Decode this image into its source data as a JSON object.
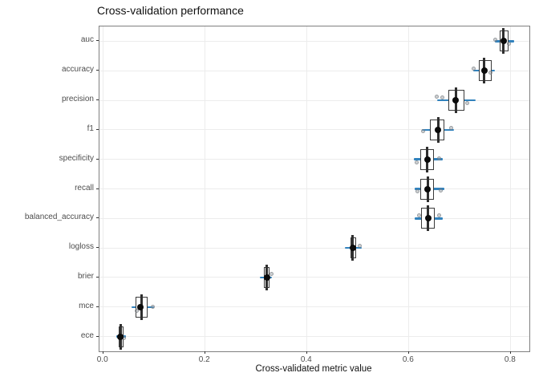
{
  "chart_data": {
    "type": "boxplot",
    "orientation": "horizontal",
    "title": "Cross-validation performance",
    "xlabel": "Cross-validated metric value",
    "ylabel": "",
    "xlim": [
      -0.0074,
      0.8364
    ],
    "x_ticks": [
      0.0,
      0.2,
      0.4,
      0.6,
      0.8
    ],
    "x_tick_labels": [
      "0.0",
      "0.2",
      "0.4",
      "0.6",
      "0.8"
    ],
    "grid": true,
    "legend": "none",
    "colors": {
      "box_border": "#3a3a3a",
      "median": "#2f2f2f",
      "crossbar_blue": "#3182bd",
      "mean_dot": "#0b0b0b",
      "jitter_point": "#94989e",
      "grid": "#ececec",
      "panel_border": "#7f7f7f",
      "axis_text": "#4d4d4d",
      "title_text": "#111111"
    },
    "metrics": [
      {
        "name": "auc",
        "lo": 0.768,
        "q1": 0.778,
        "median": 0.786,
        "q3": 0.795,
        "hi": 0.806,
        "mean": 0.786,
        "points": [
          {
            "v": 0.77,
            "dy": -2
          },
          {
            "v": 0.796,
            "dy": 3
          }
        ]
      },
      {
        "name": "accuracy",
        "lo": 0.726,
        "q1": 0.738,
        "median": 0.748,
        "q3": 0.762,
        "hi": 0.768,
        "mean": 0.748,
        "points": [
          {
            "v": 0.727,
            "dy": -3
          },
          {
            "v": 0.76,
            "dy": 2
          }
        ]
      },
      {
        "name": "precision",
        "lo": 0.655,
        "q1": 0.678,
        "median": 0.693,
        "q3": 0.709,
        "hi": 0.731,
        "mean": 0.692,
        "points": [
          {
            "v": 0.655,
            "dy": -5
          },
          {
            "v": 0.665,
            "dy": -4
          },
          {
            "v": 0.715,
            "dy": 3
          }
        ]
      },
      {
        "name": "f1",
        "lo": 0.625,
        "q1": 0.641,
        "median": 0.657,
        "q3": 0.67,
        "hi": 0.688,
        "mean": 0.657,
        "points": [
          {
            "v": 0.628,
            "dy": 2
          },
          {
            "v": 0.683,
            "dy": -2
          }
        ]
      },
      {
        "name": "specificity",
        "lo": 0.609,
        "q1": 0.623,
        "median": 0.636,
        "q3": 0.649,
        "hi": 0.667,
        "mean": 0.636,
        "points": [
          {
            "v": 0.615,
            "dy": 4
          },
          {
            "v": 0.659,
            "dy": -1
          }
        ]
      },
      {
        "name": "recall",
        "lo": 0.612,
        "q1": 0.623,
        "median": 0.637,
        "q3": 0.649,
        "hi": 0.67,
        "mean": 0.637,
        "points": [
          {
            "v": 0.617,
            "dy": 3
          },
          {
            "v": 0.662,
            "dy": 2
          }
        ]
      },
      {
        "name": "balanced_accuracy",
        "lo": 0.612,
        "q1": 0.624,
        "median": 0.638,
        "q3": 0.65,
        "hi": 0.667,
        "mean": 0.638,
        "points": [
          {
            "v": 0.62,
            "dy": -4
          },
          {
            "v": 0.659,
            "dy": -4
          }
        ]
      },
      {
        "name": "logloss",
        "lo": 0.475,
        "q1": 0.485,
        "median": 0.49,
        "q3": 0.497,
        "hi": 0.507,
        "mean": 0.49,
        "points": [
          {
            "v": 0.503,
            "dy": -3
          }
        ]
      },
      {
        "name": "brier",
        "lo": 0.308,
        "q1": 0.316,
        "median": 0.321,
        "q3": 0.326,
        "hi": 0.331,
        "mean": 0.321,
        "points": [
          {
            "v": 0.331,
            "dy": -4
          }
        ]
      },
      {
        "name": "mce",
        "lo": 0.056,
        "q1": 0.064,
        "median": 0.075,
        "q3": 0.087,
        "hi": 0.1,
        "mean": 0.073,
        "points": [
          {
            "v": 0.098,
            "dy": 0
          },
          {
            "v": 0.066,
            "dy": 5
          }
        ]
      },
      {
        "name": "ece",
        "lo": 0.025,
        "q1": 0.03,
        "median": 0.034,
        "q3": 0.04,
        "hi": 0.044,
        "mean": 0.034,
        "points": [
          {
            "v": 0.04,
            "dy": 2
          }
        ]
      }
    ]
  }
}
